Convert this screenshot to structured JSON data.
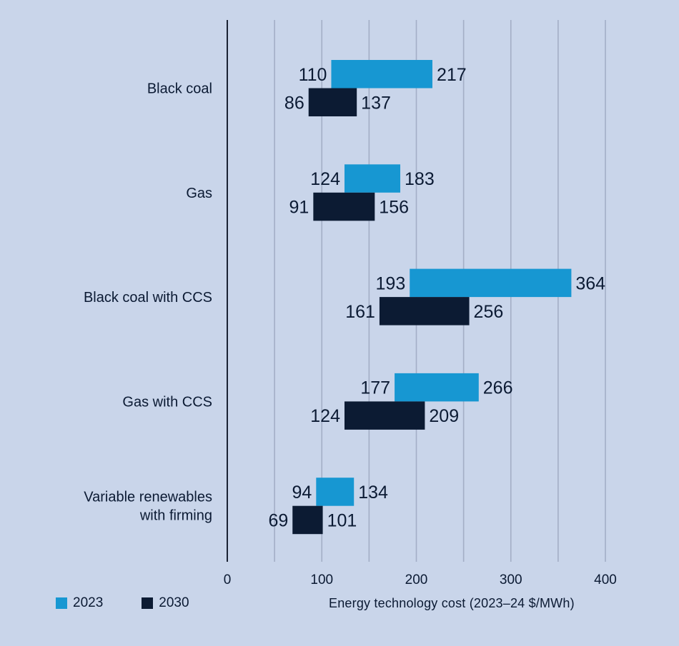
{
  "colors": {
    "background": "#c9d5ea",
    "series_2023": "#1797d2",
    "series_2030": "#0c1b33",
    "gridline": "#a3aec6",
    "axis": "#1a2233",
    "text": "#0b1a33"
  },
  "chart_data": {
    "type": "bar",
    "orientation": "horizontal",
    "bar_style": "floating-range",
    "title": "",
    "xlabel": "Energy technology cost (2023–24 $/MWh)",
    "ylabel": "",
    "xlim": [
      0,
      400
    ],
    "xticks": [
      0,
      100,
      200,
      300,
      400
    ],
    "xtick_labels": [
      "0",
      "100",
      "200",
      "300",
      "400"
    ],
    "minor_gridlines": [
      50,
      150,
      250,
      350
    ],
    "grid": true,
    "legend_position": "bottom-left",
    "categories": [
      [
        "Black coal"
      ],
      [
        "Gas"
      ],
      [
        "Black coal with CCS"
      ],
      [
        "Gas with CCS"
      ],
      [
        "Variable renewables",
        "with firming"
      ]
    ],
    "series": [
      {
        "name": "2023",
        "low": [
          110,
          124,
          193,
          177,
          94
        ],
        "high": [
          217,
          183,
          364,
          266,
          134
        ],
        "low_labels": [
          "110",
          "124",
          "193",
          "177",
          "94"
        ],
        "high_labels": [
          "217",
          "183",
          "364",
          "266",
          "134"
        ]
      },
      {
        "name": "2030",
        "low": [
          86,
          91,
          161,
          124,
          69
        ],
        "high": [
          137,
          156,
          256,
          209,
          101
        ],
        "low_labels": [
          "86",
          "91",
          "161",
          "124",
          "69"
        ],
        "high_labels": [
          "137",
          "156",
          "256",
          "209",
          "101"
        ]
      }
    ]
  },
  "legend": {
    "items": [
      {
        "label": "2023"
      },
      {
        "label": "2030"
      }
    ]
  }
}
